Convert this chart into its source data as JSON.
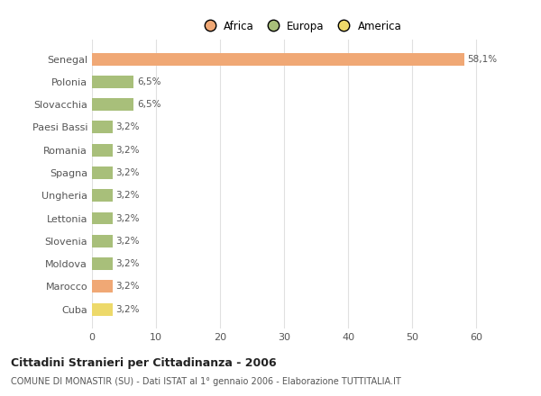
{
  "categories": [
    "Senegal",
    "Polonia",
    "Slovacchia",
    "Paesi Bassi",
    "Romania",
    "Spagna",
    "Ungheria",
    "Lettonia",
    "Slovenia",
    "Moldova",
    "Marocco",
    "Cuba"
  ],
  "values": [
    58.1,
    6.5,
    6.5,
    3.2,
    3.2,
    3.2,
    3.2,
    3.2,
    3.2,
    3.2,
    3.2,
    3.2
  ],
  "labels": [
    "58,1%",
    "6,5%",
    "6,5%",
    "3,2%",
    "3,2%",
    "3,2%",
    "3,2%",
    "3,2%",
    "3,2%",
    "3,2%",
    "3,2%",
    "3,2%"
  ],
  "colors": [
    "#F0A875",
    "#A8BF7A",
    "#A8BF7A",
    "#A8BF7A",
    "#A8BF7A",
    "#A8BF7A",
    "#A8BF7A",
    "#A8BF7A",
    "#A8BF7A",
    "#A8BF7A",
    "#F0A875",
    "#EDD96A"
  ],
  "legend_labels": [
    "Africa",
    "Europa",
    "America"
  ],
  "legend_colors": [
    "#F0A875",
    "#A8BF7A",
    "#EDD96A"
  ],
  "title_bold": "Cittadini Stranieri per Cittadinanza - 2006",
  "subtitle": "COMUNE DI MONASTIR (SU) - Dati ISTAT al 1° gennaio 2006 - Elaborazione TUTTITALIA.IT",
  "xlim": [
    0,
    65
  ],
  "xticks": [
    0,
    10,
    20,
    30,
    40,
    50,
    60
  ],
  "background_color": "#ffffff",
  "grid_color": "#e0e0e0"
}
